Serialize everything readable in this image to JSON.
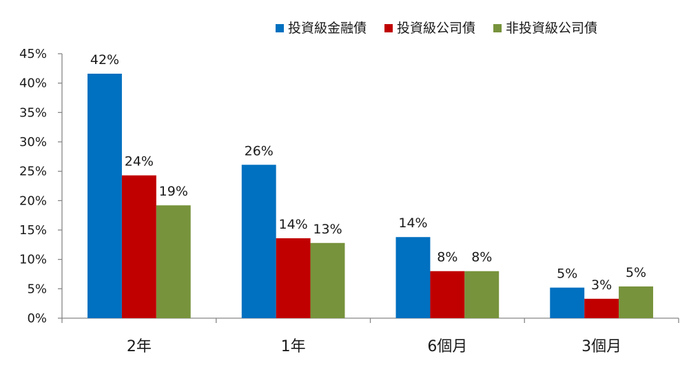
{
  "chart_data": {
    "type": "bar",
    "title": "",
    "xlabel": "",
    "ylabel": "",
    "categories": [
      "2年",
      "1年",
      "6個月",
      "3個月"
    ],
    "series": [
      {
        "name": "投資級金融債",
        "color": "#0070c0",
        "values": [
          41.6,
          26.1,
          13.8,
          5.2
        ],
        "labels": [
          "42%",
          "26%",
          "14%",
          "5%"
        ]
      },
      {
        "name": "投資級公司債",
        "color": "#c00000",
        "values": [
          24.3,
          13.6,
          8.0,
          3.3
        ],
        "labels": [
          "24%",
          "14%",
          "8%",
          "3%"
        ]
      },
      {
        "name": "非投資級公司債",
        "color": "#77933c",
        "values": [
          19.2,
          12.8,
          8.0,
          5.4
        ],
        "labels": [
          "19%",
          "13%",
          "8%",
          "5%"
        ]
      }
    ],
    "ylim": [
      0,
      45
    ],
    "yticks": [
      "0%",
      "5%",
      "10%",
      "15%",
      "20%",
      "25%",
      "30%",
      "35%",
      "40%",
      "45%"
    ],
    "grid": false,
    "legend_position": "top-right"
  }
}
